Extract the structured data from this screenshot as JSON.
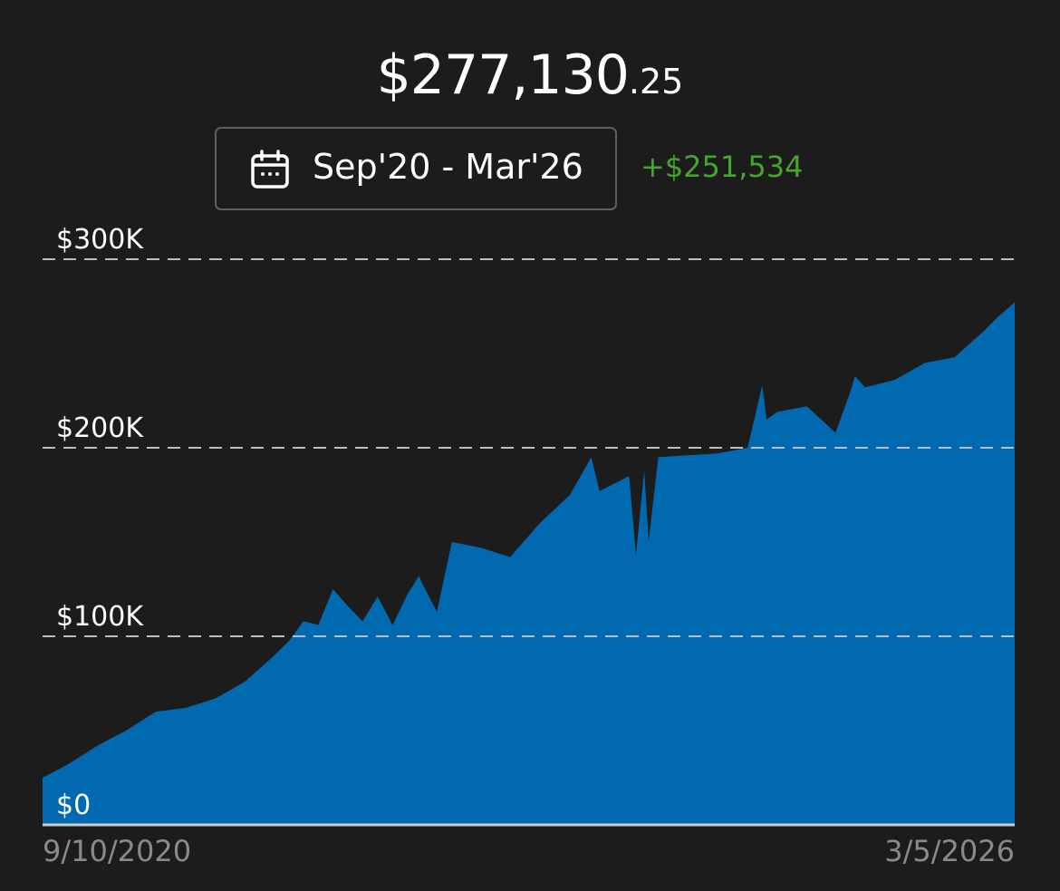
{
  "header": {
    "balance_main": "$277,130",
    "balance_cents": ".25",
    "range_label": "Sep'20 - Mar'26",
    "range_icon": "calendar-icon",
    "change": "+$251,534",
    "change_color": "#43a72f"
  },
  "chart_data": {
    "type": "area",
    "title": "",
    "xlabel": "",
    "ylabel": "",
    "ylim": [
      0,
      300000
    ],
    "yticks": [
      0,
      100000,
      200000,
      300000
    ],
    "ytick_labels": [
      "$0",
      "$100K",
      "$200K",
      "$300K"
    ],
    "x_start_label": "9/10/2020",
    "x_end_label": "3/5/2026",
    "grid": true,
    "fill_color": "#0069b0",
    "series": [
      {
        "x": [
          "2020-09-10",
          "2020-11-01",
          "2021-01-01",
          "2021-03-01",
          "2021-05-01",
          "2021-07-01",
          "2021-09-01",
          "2021-11-01",
          "2022-01-01",
          "2022-02-01",
          "2022-03-01",
          "2022-04-01",
          "2022-05-01",
          "2022-06-01",
          "2022-07-01",
          "2022-08-01",
          "2022-09-01",
          "2022-10-01",
          "2022-10-25",
          "2022-11-01",
          "2022-12-01",
          "2023-01-01",
          "2023-03-01",
          "2023-05-01",
          "2023-07-01",
          "2023-09-01",
          "2023-10-15",
          "2023-11-01",
          "2024-01-01",
          "2024-01-15",
          "2024-02-01",
          "2024-02-10",
          "2024-03-01",
          "2024-05-01",
          "2024-07-01",
          "2024-09-01",
          "2024-10-01",
          "2024-10-10",
          "2024-11-01",
          "2025-01-01",
          "2025-03-01",
          "2025-04-01",
          "2025-04-10",
          "2025-05-01",
          "2025-07-01",
          "2025-09-01",
          "2025-11-01",
          "2026-01-01",
          "2026-02-01",
          "2026-03-05"
        ],
        "values": [
          25000,
          32000,
          42000,
          50000,
          60000,
          62000,
          67000,
          76000,
          90000,
          98000,
          108000,
          106000,
          125000,
          116000,
          108000,
          121000,
          106000,
          122000,
          132000,
          128000,
          113000,
          150000,
          147000,
          142000,
          160000,
          175000,
          195000,
          177000,
          185000,
          143000,
          188000,
          150000,
          195000,
          196000,
          197000,
          200000,
          233000,
          215000,
          219000,
          222000,
          208000,
          230000,
          238000,
          232000,
          236000,
          245000,
          248000,
          262000,
          270000,
          277130
        ]
      }
    ]
  }
}
